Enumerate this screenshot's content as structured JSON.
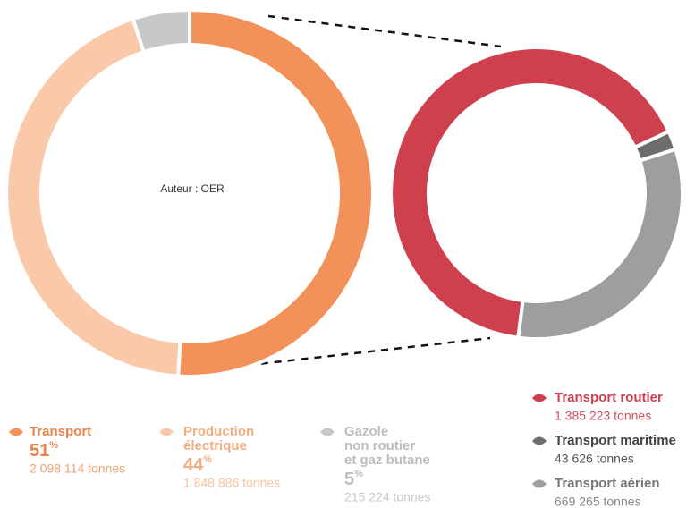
{
  "chart_data": [
    {
      "type": "donut",
      "annotation": "Auteur : OER",
      "categories": [
        [
          "Transport"
        ],
        [
          "Production",
          "électrique"
        ],
        [
          "Gazole",
          "non routier",
          "et gaz butane"
        ]
      ],
      "values": [
        51,
        44,
        5
      ],
      "unit": "%",
      "amounts": [
        2098114,
        1848886,
        215224
      ],
      "amount_labels": [
        "2 098 114 tonnes",
        "1 848 886 tonnes",
        "215 224 tonnes"
      ],
      "colors": [
        "#f2925a",
        "#f9c9a9",
        "#c8c8c8"
      ]
    },
    {
      "type": "donut",
      "categories": [
        "Transport routier",
        "Transport maritime",
        "Transport aérien"
      ],
      "values": [
        1385223,
        43626,
        669265
      ],
      "value_labels": [
        "1 385 223 tonnes",
        "43 626 tonnes",
        "669 265 tonnes"
      ],
      "colors": [
        "#cf404f",
        "#6d6d6d",
        "#9e9e9e"
      ]
    }
  ]
}
